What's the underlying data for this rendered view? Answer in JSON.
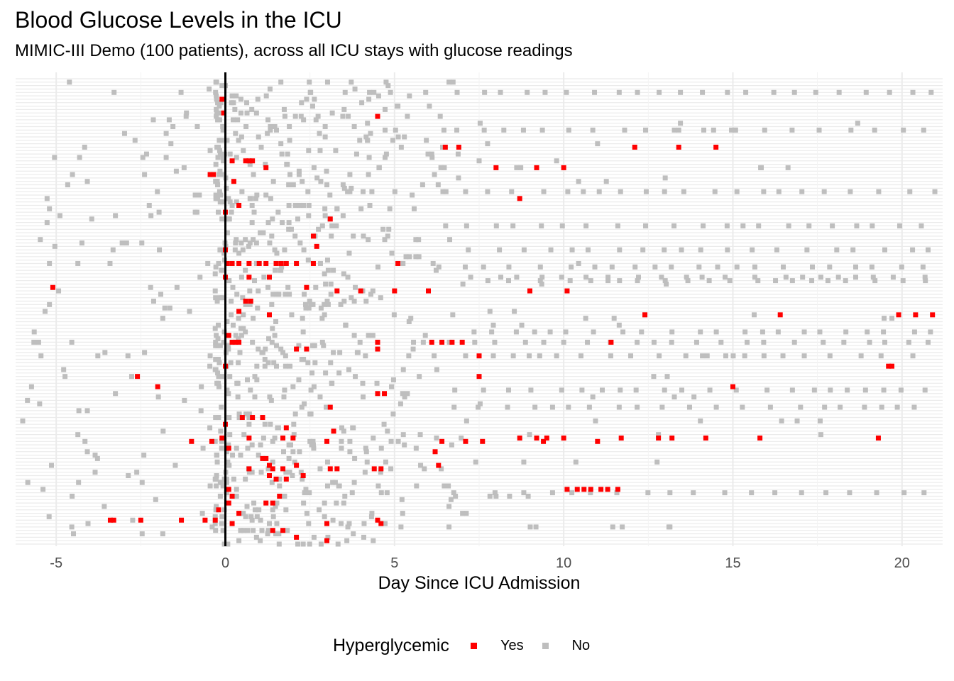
{
  "chart_data": {
    "type": "scatter",
    "title": "Blood Glucose Levels in the ICU",
    "subtitle": "MIMIC-III Demo (100 patients), across all ICU stays with glucose readings",
    "xlabel": "Day Since ICU Admission",
    "ylabel": "",
    "xlim": [
      -6.2,
      21.2
    ],
    "x_ticks": [
      -5,
      0,
      5,
      10,
      15,
      20
    ],
    "x_tick_labels": [
      "-5",
      "0",
      "5",
      "10",
      "15",
      "20"
    ],
    "reference_line_x": 0,
    "grid": true,
    "y_rows": 136,
    "legend": {
      "title": "Hyperglycemic",
      "position": "bottom",
      "entries": [
        {
          "label": "Yes",
          "color": "#ff0000"
        },
        {
          "label": "No",
          "color": "#bebebe"
        }
      ]
    },
    "series": [
      {
        "name": "Yes",
        "color": "#ff0000",
        "points": [
          [
            -0.1,
            130
          ],
          [
            -0.05,
            126
          ],
          [
            4.5,
            125
          ],
          [
            6.5,
            116
          ],
          [
            6.9,
            116
          ],
          [
            12.1,
            116
          ],
          [
            13.4,
            116
          ],
          [
            14.5,
            116
          ],
          [
            0.2,
            112
          ],
          [
            0.6,
            112
          ],
          [
            0.7,
            112
          ],
          [
            0.8,
            112
          ],
          [
            1.2,
            110
          ],
          [
            8.0,
            110
          ],
          [
            9.2,
            110
          ],
          [
            10.0,
            110
          ],
          [
            -0.45,
            108
          ],
          [
            -0.35,
            108
          ],
          [
            0.25,
            106
          ],
          [
            8.7,
            101
          ],
          [
            0.4,
            99
          ],
          [
            0.0,
            97
          ],
          [
            3.1,
            95
          ],
          [
            2.6,
            90
          ],
          [
            2.7,
            87
          ],
          [
            0.0,
            86
          ],
          [
            0.05,
            82
          ],
          [
            0.2,
            82
          ],
          [
            0.4,
            82
          ],
          [
            0.7,
            82
          ],
          [
            1.0,
            82
          ],
          [
            1.2,
            82
          ],
          [
            1.5,
            82
          ],
          [
            1.65,
            82
          ],
          [
            1.8,
            82
          ],
          [
            2.1,
            82
          ],
          [
            2.6,
            82
          ],
          [
            5.1,
            82
          ],
          [
            0.0,
            78
          ],
          [
            0.7,
            78
          ],
          [
            1.3,
            78
          ],
          [
            -5.1,
            75
          ],
          [
            2.4,
            75
          ],
          [
            3.3,
            74
          ],
          [
            4.0,
            74
          ],
          [
            5.0,
            74
          ],
          [
            6.0,
            74
          ],
          [
            9.0,
            74
          ],
          [
            10.1,
            74
          ],
          [
            0.6,
            71
          ],
          [
            0.75,
            71
          ],
          [
            0.4,
            68
          ],
          [
            1.3,
            67
          ],
          [
            12.4,
            67
          ],
          [
            16.4,
            67
          ],
          [
            19.9,
            67
          ],
          [
            20.4,
            67
          ],
          [
            20.9,
            67
          ],
          [
            0.1,
            61
          ],
          [
            0.2,
            59
          ],
          [
            0.3,
            59
          ],
          [
            0.4,
            59
          ],
          [
            4.5,
            59
          ],
          [
            6.1,
            59
          ],
          [
            6.4,
            59
          ],
          [
            6.7,
            59
          ],
          [
            7.0,
            59
          ],
          [
            11.4,
            59
          ],
          [
            2.1,
            57
          ],
          [
            2.4,
            57
          ],
          [
            4.5,
            57
          ],
          [
            7.5,
            55
          ],
          [
            0.0,
            52
          ],
          [
            19.6,
            52
          ],
          [
            19.7,
            52
          ],
          [
            -2.6,
            49
          ],
          [
            7.5,
            49
          ],
          [
            -2.0,
            46
          ],
          [
            15.0,
            46
          ],
          [
            4.5,
            44
          ],
          [
            4.7,
            44
          ],
          [
            3.1,
            40
          ],
          [
            0.5,
            37
          ],
          [
            0.8,
            37
          ],
          [
            1.1,
            37
          ],
          [
            0.0,
            35
          ],
          [
            1.8,
            34
          ],
          [
            3.2,
            33
          ],
          [
            -0.1,
            31
          ],
          [
            0.7,
            31
          ],
          [
            1.7,
            31
          ],
          [
            2.0,
            31
          ],
          [
            8.7,
            31
          ],
          [
            9.2,
            31
          ],
          [
            9.5,
            31
          ],
          [
            10.0,
            31
          ],
          [
            11.7,
            31
          ],
          [
            12.8,
            31
          ],
          [
            13.2,
            31
          ],
          [
            14.2,
            31
          ],
          [
            15.8,
            31
          ],
          [
            19.3,
            31
          ],
          [
            -1.0,
            30
          ],
          [
            -0.4,
            30
          ],
          [
            3.0,
            30
          ],
          [
            6.4,
            30
          ],
          [
            7.1,
            30
          ],
          [
            7.6,
            30
          ],
          [
            9.4,
            30
          ],
          [
            11.0,
            30
          ],
          [
            0.1,
            28
          ],
          [
            6.2,
            27
          ],
          [
            1.1,
            25
          ],
          [
            1.2,
            25
          ],
          [
            1.3,
            23
          ],
          [
            2.1,
            23
          ],
          [
            0.7,
            22
          ],
          [
            1.4,
            22
          ],
          [
            1.7,
            22
          ],
          [
            3.1,
            22
          ],
          [
            3.3,
            22
          ],
          [
            4.4,
            22
          ],
          [
            4.6,
            22
          ],
          [
            6.3,
            23
          ],
          [
            1.3,
            20
          ],
          [
            1.5,
            19
          ],
          [
            1.8,
            19
          ],
          [
            2.3,
            20
          ],
          [
            0.1,
            16
          ],
          [
            10.1,
            16
          ],
          [
            10.4,
            16
          ],
          [
            10.6,
            16
          ],
          [
            10.8,
            16
          ],
          [
            11.1,
            16
          ],
          [
            11.3,
            16
          ],
          [
            11.6,
            16
          ],
          [
            0.2,
            14
          ],
          [
            1.6,
            14
          ],
          [
            0.1,
            12
          ],
          [
            1.2,
            12
          ],
          [
            1.4,
            12
          ],
          [
            -0.2,
            10
          ],
          [
            0.4,
            9
          ],
          [
            -3.4,
            7
          ],
          [
            -3.3,
            7
          ],
          [
            -2.5,
            7
          ],
          [
            -1.3,
            7
          ],
          [
            -0.6,
            7
          ],
          [
            -0.3,
            7
          ],
          [
            0.2,
            6
          ],
          [
            3.0,
            6
          ],
          [
            4.5,
            7
          ],
          [
            4.6,
            6
          ],
          [
            1.4,
            4
          ],
          [
            1.7,
            4
          ],
          [
            2.1,
            2
          ],
          [
            3.0,
            1
          ]
        ]
      },
      {
        "name": "No",
        "color": "#bebebe",
        "points": []
      }
    ]
  }
}
